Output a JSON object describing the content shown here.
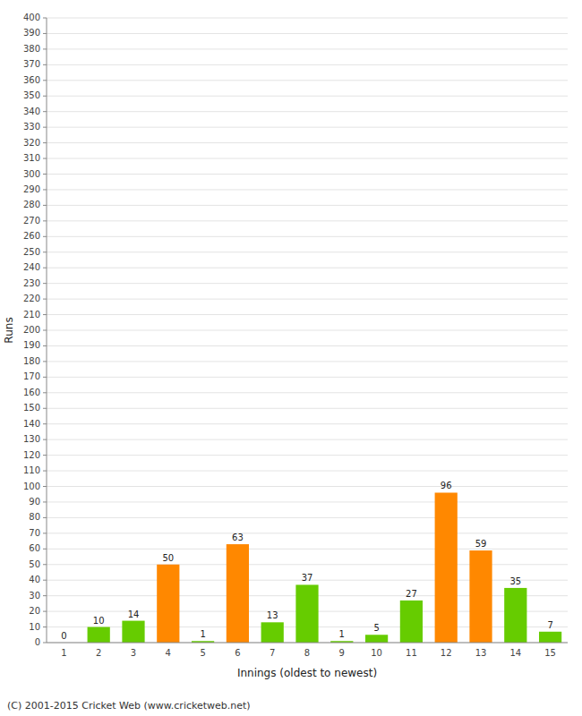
{
  "chart_data": {
    "type": "bar",
    "categories": [
      1,
      2,
      3,
      4,
      5,
      6,
      7,
      8,
      9,
      10,
      11,
      12,
      13,
      14,
      15
    ],
    "values": [
      0,
      10,
      14,
      50,
      1,
      63,
      13,
      37,
      1,
      5,
      27,
      96,
      59,
      35,
      7
    ],
    "colors": [
      "#66cc00",
      "#66cc00",
      "#66cc00",
      "#ff8800",
      "#66cc00",
      "#ff8800",
      "#66cc00",
      "#66cc00",
      "#66cc00",
      "#66cc00",
      "#66cc00",
      "#ff8800",
      "#ff8800",
      "#66cc00",
      "#66cc00"
    ],
    "xlabel": "Innings (oldest to newest)",
    "ylabel": "Runs",
    "ylim": [
      0,
      400
    ],
    "yticks": [
      0,
      10,
      20,
      30,
      40,
      50,
      60,
      70,
      80,
      90,
      100,
      110,
      120,
      130,
      140,
      150,
      160,
      170,
      180,
      190,
      200,
      210,
      220,
      230,
      240,
      250,
      260,
      270,
      280,
      290,
      300,
      310,
      320,
      330,
      340,
      350,
      360,
      370,
      380,
      390,
      400
    ],
    "grid": true,
    "data_labels": true,
    "annotations": [
      "(C) 2001-2015 Cricket Web (www.cricketweb.net)"
    ]
  }
}
